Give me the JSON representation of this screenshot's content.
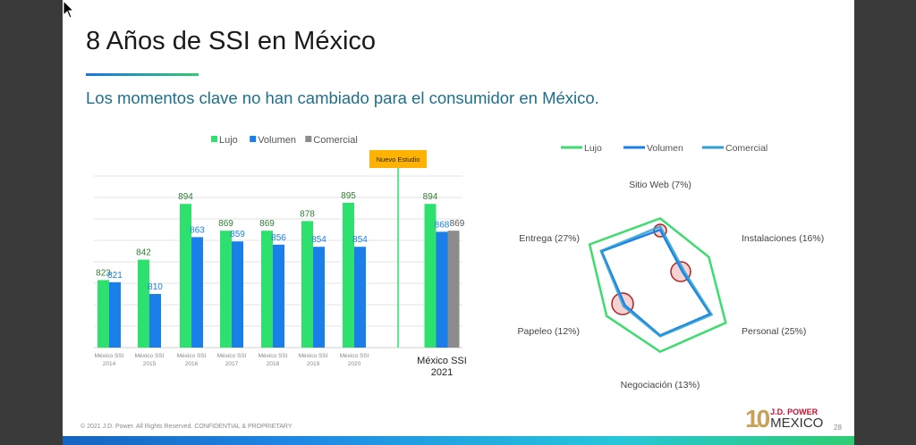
{
  "slide": {
    "title_bold": "8 Años",
    "title_rest": " de SSI en México",
    "subtitle": "Los momentos clave no han cambiado para el consumidor en México.",
    "footer": "© 2021 J.D. Power. All Rights Reserved. CONFIDENTIAL & PROPRIETARY",
    "page_number": "28",
    "logo": {
      "ten": "10",
      "brand": "J.D. POWER",
      "country": "MEXICO"
    }
  },
  "chart_data": [
    {
      "type": "bar",
      "title": "",
      "legend": [
        "Lujo",
        "Volumen",
        "Comercial"
      ],
      "legend_position": "top",
      "colors": {
        "Lujo": "#2ee06e",
        "Volumen": "#1a7fe8",
        "Comercial": "#8c8c8c"
      },
      "categories": [
        "México SSI 2014",
        "México SSI 2015",
        "México SSI 2016",
        "México SSI 2017",
        "México SSI 2018",
        "México SSI 2019",
        "México SSI 2020",
        "México SSI 2021"
      ],
      "category_lines": [
        [
          "México SSI",
          "2014"
        ],
        [
          "México SSI",
          "2015"
        ],
        [
          "México SSI",
          "2016"
        ],
        [
          "México SSI",
          "2017"
        ],
        [
          "México SSI",
          "2018"
        ],
        [
          "México SSI",
          "2019"
        ],
        [
          "México SSI",
          "2020"
        ],
        [
          "México SSI",
          "2021"
        ]
      ],
      "series": [
        {
          "name": "Lujo",
          "values": [
            823,
            842,
            894,
            869,
            869,
            878,
            895,
            894
          ]
        },
        {
          "name": "Volumen",
          "values": [
            821,
            810,
            863,
            859,
            856,
            854,
            854,
            868
          ]
        },
        {
          "name": "Comercial",
          "values": [
            null,
            null,
            null,
            null,
            null,
            null,
            null,
            869
          ]
        }
      ],
      "ylim": [
        760,
        920
      ],
      "grid": true,
      "annotation": "Nuevo Estudio"
    },
    {
      "type": "radar",
      "legend": [
        "Lujo",
        "Volumen",
        "Comercial"
      ],
      "legend_position": "top",
      "colors": {
        "Lujo": "#3ddc6e",
        "Volumen": "#1a7fe8",
        "Comercial": "#2b9fd6"
      },
      "axes": [
        "Sitio Web (7%)",
        "Instalaciones (16%)",
        "Personal (25%)",
        "Negociación (13%)",
        "Papeleo (12%)",
        "Entrega (27%)"
      ],
      "series": [
        {
          "name": "Lujo",
          "values": [
            82,
            69,
            93,
            82,
            76,
            100
          ]
        },
        {
          "name": "Volumen",
          "values": [
            68,
            32,
            71,
            62,
            50,
            83
          ]
        },
        {
          "name": "Comercial",
          "values": [
            72,
            34,
            73,
            63,
            52,
            84
          ]
        }
      ],
      "highlighted_axes": [
        "Sitio Web (7%)",
        "Instalaciones (16%)",
        "Papeleo (12%)"
      ]
    }
  ]
}
